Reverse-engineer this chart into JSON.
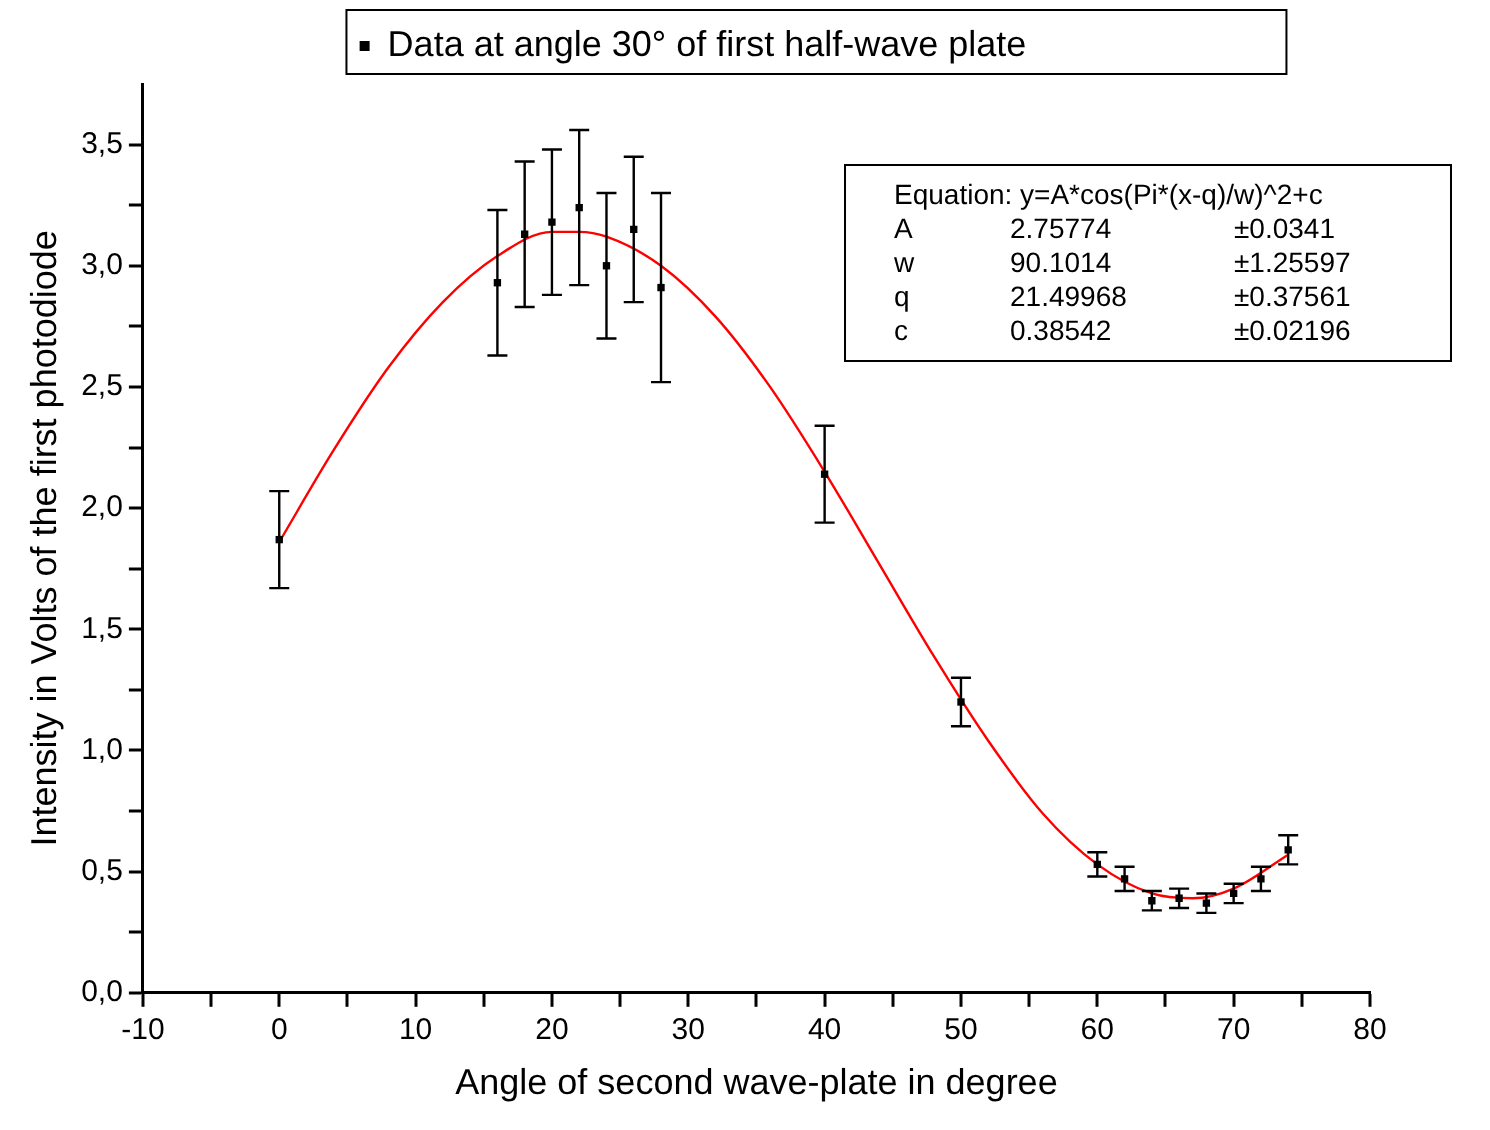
{
  "chart_data": {
    "type": "scatter",
    "xlabel": "Angle of second wave-plate in degree",
    "ylabel": "Intensity in Volts of the first photodiode",
    "legend": "top",
    "marker": "square",
    "grid": false,
    "xlim": [
      -10,
      80
    ],
    "xticks": [
      -10,
      {
        "value": -5,
        "label": null
      },
      0,
      {
        "value": 5,
        "label": null
      },
      10,
      {
        "value": 15,
        "label": null
      },
      20,
      {
        "value": 25,
        "label": null
      },
      30,
      {
        "value": 35,
        "label": null
      },
      40,
      {
        "value": 45,
        "label": null
      },
      50,
      {
        "value": 55,
        "label": null
      },
      60,
      {
        "value": 65,
        "label": null
      },
      70,
      {
        "value": 75,
        "label": null
      },
      80
    ],
    "ylim": [
      0,
      3.75
    ],
    "yticks": [
      {
        "value": 0,
        "label": "0,0"
      },
      {
        "value": 0.25,
        "label": null
      },
      {
        "value": 0.5,
        "label": "0,5"
      },
      {
        "value": 0.75,
        "label": null
      },
      {
        "value": 1,
        "label": "1,0"
      },
      {
        "value": 1.25,
        "label": null
      },
      {
        "value": 1.5,
        "label": "1,5"
      },
      {
        "value": 1.75,
        "label": null
      },
      {
        "value": 2,
        "label": "2,0"
      },
      {
        "value": 2.25,
        "label": null
      },
      {
        "value": 2.5,
        "label": "2,5"
      },
      {
        "value": 2.75,
        "label": null
      },
      {
        "value": 3,
        "label": "3,0"
      },
      {
        "value": 3.25,
        "label": null
      },
      {
        "value": 3.5,
        "label": "3,5"
      }
    ],
    "annotations": [
      "Equation: y=A*cos(Pi*(x-q)/w)^2+c",
      "A 2.75774 ±0.0341",
      "w 90.1014 ±1.25597",
      "q 21.49968 ±0.37561",
      "c 0.38542 ±0.02196"
    ],
    "series": [
      {
        "name": "Data at angle 30° of first half-wave plate",
        "color": "#000000",
        "x": [
          0,
          16,
          18,
          20,
          22,
          24,
          26,
          28,
          40,
          50,
          60,
          62,
          64,
          66,
          68,
          70,
          72,
          74
        ],
        "values": [
          1.87,
          2.93,
          3.13,
          3.18,
          3.24,
          3.0,
          3.15,
          2.91,
          2.14,
          1.2,
          0.53,
          0.47,
          0.38,
          0.39,
          0.37,
          0.41,
          0.47,
          0.59
        ],
        "errors": [
          0.2,
          0.3,
          0.3,
          0.3,
          0.32,
          0.3,
          0.3,
          0.39,
          0.2,
          0.1,
          0.05,
          0.05,
          0.04,
          0.04,
          0.04,
          0.04,
          0.05,
          0.06
        ]
      },
      {
        "type": "line",
        "color": "#ff0000",
        "marker": "none",
        "x": [
          0,
          4,
          8,
          12,
          16,
          20,
          22,
          24,
          28,
          32,
          36,
          40,
          44,
          48,
          52,
          56,
          60,
          64,
          67,
          70,
          74
        ],
        "values": [
          1.86,
          2.24,
          2.58,
          2.85,
          3.04,
          3.14,
          3.14,
          3.12,
          3.0,
          2.79,
          2.5,
          2.15,
          1.77,
          1.39,
          1.04,
          0.74,
          0.53,
          0.41,
          0.39,
          0.43,
          0.57
        ]
      }
    ]
  }
}
